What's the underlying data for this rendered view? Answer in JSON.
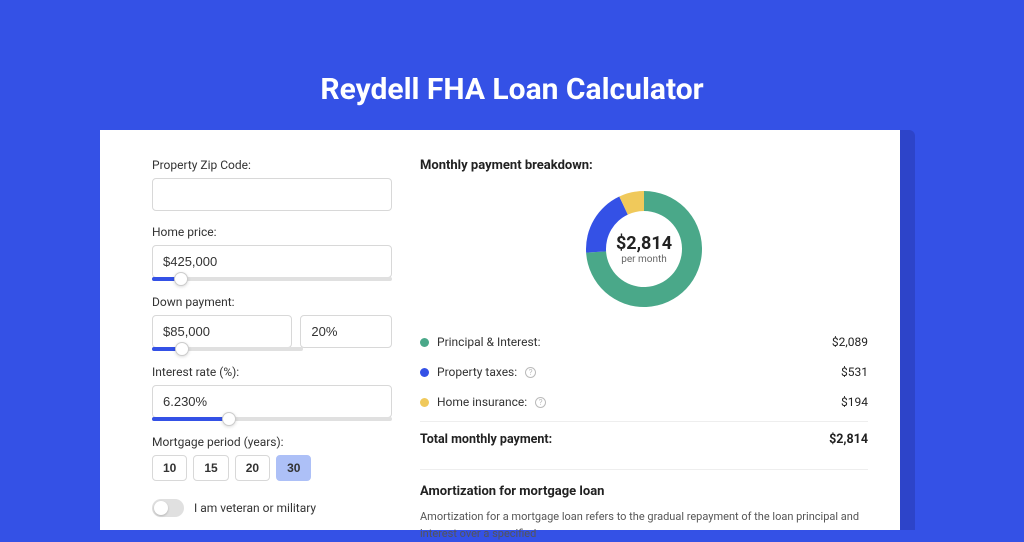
{
  "page": {
    "title": "Reydell FHA Loan Calculator"
  },
  "colors": {
    "page_bg": "#3451e6",
    "shadow_bg": "#2d44c9",
    "card_bg": "#ffffff",
    "accent": "#3451e6",
    "text": "#333333",
    "border": "#d8d8d8"
  },
  "form": {
    "zip": {
      "label": "Property Zip Code:",
      "value": ""
    },
    "price": {
      "label": "Home price:",
      "value": "$425,000",
      "slider_pct": 12
    },
    "down": {
      "label": "Down payment:",
      "value": "$85,000",
      "pct_value": "20%",
      "slider_pct": 20
    },
    "rate": {
      "label": "Interest rate (%):",
      "value": "6.230%",
      "slider_pct": 32
    },
    "period": {
      "label": "Mortgage period (years):",
      "options": [
        "10",
        "15",
        "20",
        "30"
      ],
      "selected": "30"
    },
    "veteran": {
      "label": "I am veteran or military",
      "checked": false
    }
  },
  "breakdown": {
    "title": "Monthly payment breakdown:",
    "center_amount": "$2,814",
    "center_sub": "per month",
    "donut": {
      "slices": [
        {
          "name": "principal_interest",
          "pct": 74,
          "color": "#4aa889"
        },
        {
          "name": "property_taxes",
          "pct": 19,
          "color": "#3451e6"
        },
        {
          "name": "home_insurance",
          "pct": 7,
          "color": "#f0c95b"
        }
      ],
      "thickness": 20
    },
    "items": [
      {
        "label": "Principal & Interest:",
        "value": "$2,089",
        "color": "#4aa889",
        "info": false
      },
      {
        "label": "Property taxes:",
        "value": "$531",
        "color": "#3451e6",
        "info": true
      },
      {
        "label": "Home insurance:",
        "value": "$194",
        "color": "#f0c95b",
        "info": true
      }
    ],
    "total": {
      "label": "Total monthly payment:",
      "value": "$2,814"
    }
  },
  "amortization": {
    "title": "Amortization for mortgage loan",
    "text": "Amortization for a mortgage loan refers to the gradual repayment of the loan principal and interest over a specified"
  }
}
